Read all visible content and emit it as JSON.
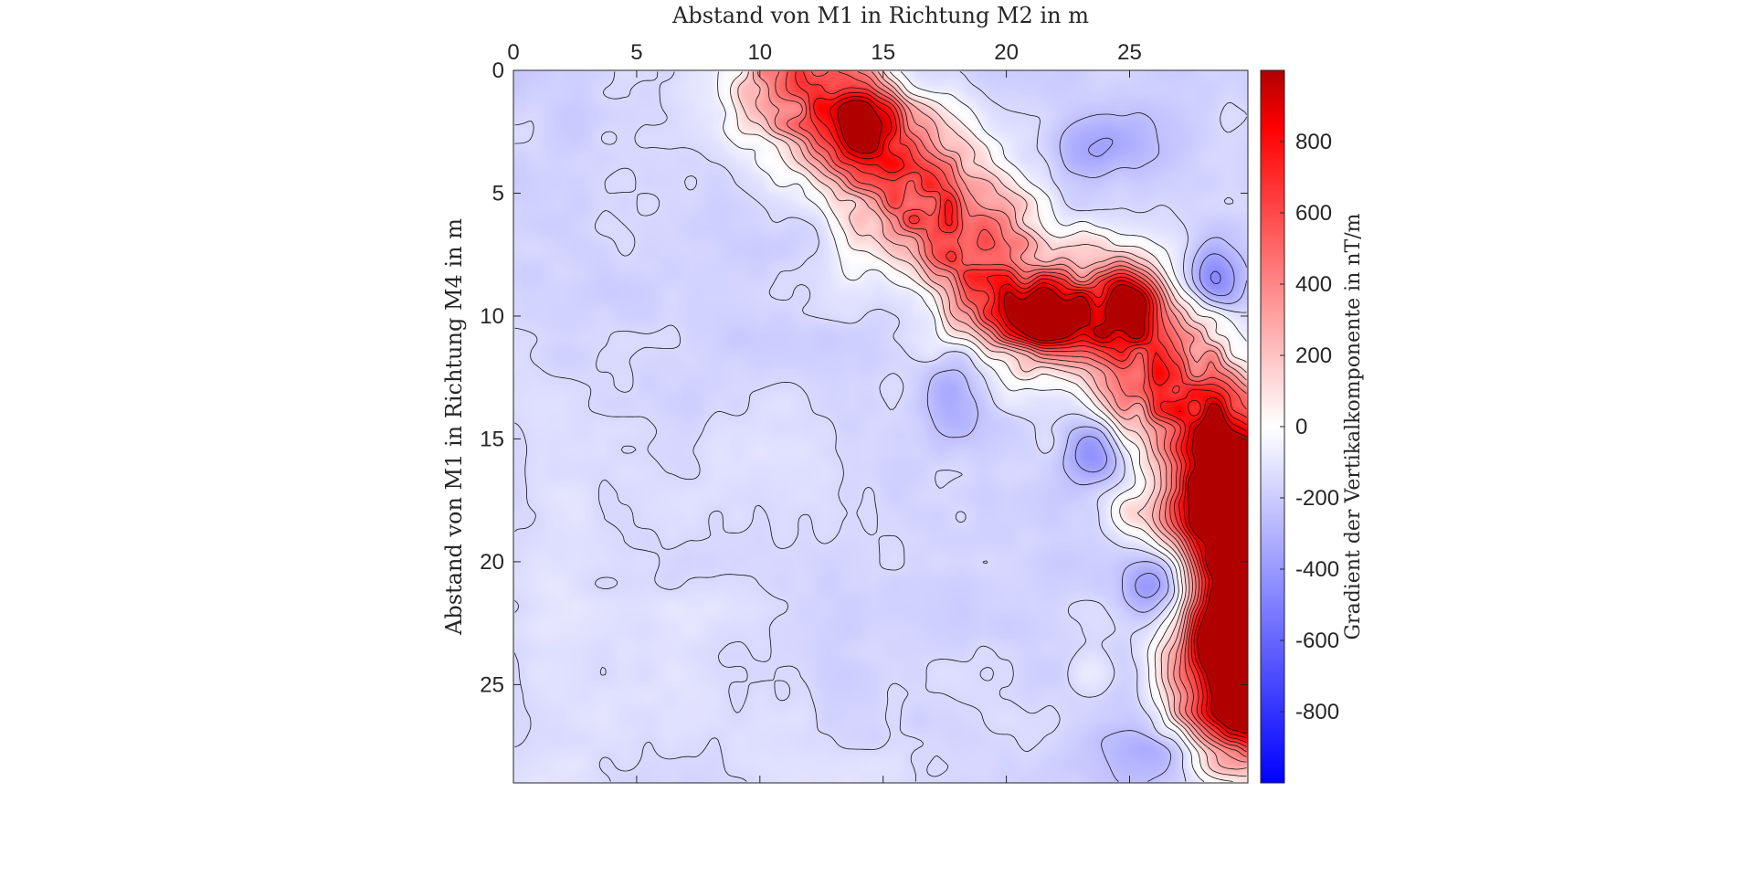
{
  "chart_data": {
    "type": "heatmap",
    "title": "",
    "xlabel": "Abstand von M1 in Richtung M2 in m",
    "ylabel": "Abstand von M1 in Richtung M4 in m",
    "xlim": [
      0,
      29.8
    ],
    "ylim": [
      0,
      29
    ],
    "x_axis_position": "top",
    "y_axis_reversed": true,
    "x_ticks": [
      0,
      5,
      10,
      15,
      20,
      25
    ],
    "x_tick_labels": [
      "0",
      "5",
      "10",
      "15",
      "20",
      "25"
    ],
    "y_ticks": [
      0,
      5,
      10,
      15,
      20,
      25
    ],
    "y_tick_labels": [
      "0",
      "5",
      "10",
      "15",
      "20",
      "25"
    ],
    "grid": false,
    "contour_lines": true,
    "colormap": "blue-white-red",
    "colormap_colors": {
      "low": "#0000ff",
      "mid": "#ffffff",
      "high": "#ff0000",
      "high_end": "#b00000"
    },
    "colorbar": {
      "label": "Gradient der Vertikalkomponente in nT/m",
      "placement": "right",
      "range": [
        -1000,
        1000
      ],
      "ticks": [
        -800,
        -600,
        -400,
        -200,
        0,
        200,
        400,
        600,
        800
      ],
      "tick_labels": [
        "-800",
        "-600",
        "-400",
        "-200",
        "0",
        "200",
        "400",
        "600",
        "800"
      ]
    },
    "features": [
      {
        "label": "positive diagonal anomaly ridge",
        "points": [
          [
            12,
            0.3
          ],
          [
            14,
            2.5
          ],
          [
            17,
            5.5
          ],
          [
            20.5,
            9.5
          ],
          [
            24,
            10.5
          ],
          [
            26.5,
            12.5
          ],
          [
            28.5,
            15.5
          ],
          [
            29.5,
            20
          ],
          [
            29.5,
            26
          ]
        ],
        "peak": 820,
        "width": 1.8
      },
      {
        "label": "strong positive zone at right edge",
        "x": 29.3,
        "y": 17,
        "value": 1000,
        "sx": 1.6,
        "sy": 2.2
      },
      {
        "label": "strong positive zone at right edge",
        "x": 29.3,
        "y": 23.5,
        "value": 950,
        "sx": 1.4,
        "sy": 2.4
      },
      {
        "label": "positive peak",
        "x": 21.5,
        "y": 10,
        "value": 700,
        "sx": 1.0,
        "sy": 0.9
      },
      {
        "label": "positive peak",
        "x": 25,
        "y": 9.5,
        "value": 650,
        "sx": 1.0,
        "sy": 1.0
      },
      {
        "label": "positive peak",
        "x": 14,
        "y": 2,
        "value": 600,
        "sx": 0.8,
        "sy": 1.1
      },
      {
        "label": "negative zone",
        "x": 26.5,
        "y": 21,
        "value": -420,
        "sx": 1.2,
        "sy": 1.0
      },
      {
        "label": "negative zone",
        "x": 23.5,
        "y": 15.5,
        "value": -320,
        "sx": 0.9,
        "sy": 0.9
      },
      {
        "label": "negative zone",
        "x": 28.5,
        "y": 8.5,
        "value": -280,
        "sx": 0.8,
        "sy": 1.2
      },
      {
        "label": "negative zone",
        "x": 18,
        "y": 13,
        "value": -230,
        "sx": 1.0,
        "sy": 1.6
      },
      {
        "label": "negative zone",
        "x": 24,
        "y": 3,
        "value": -200,
        "sx": 1.4,
        "sy": 1.0
      },
      {
        "label": "negative zone",
        "x": 26.5,
        "y": 27.5,
        "value": -230,
        "sx": 1.5,
        "sy": 1.0
      },
      {
        "label": "weak positive patch",
        "x": 23.5,
        "y": 24.5,
        "value": 120,
        "sx": 0.6,
        "sy": 0.7
      },
      {
        "label": "weak positive patch",
        "x": 25,
        "y": 18,
        "value": 200,
        "sx": 0.6,
        "sy": 0.6
      },
      {
        "label": "weak positive patch",
        "x": 1.5,
        "y": 22,
        "value": 40,
        "sx": 1.0,
        "sy": 2.5
      }
    ],
    "background_value_range": [
      -230,
      -80
    ]
  }
}
